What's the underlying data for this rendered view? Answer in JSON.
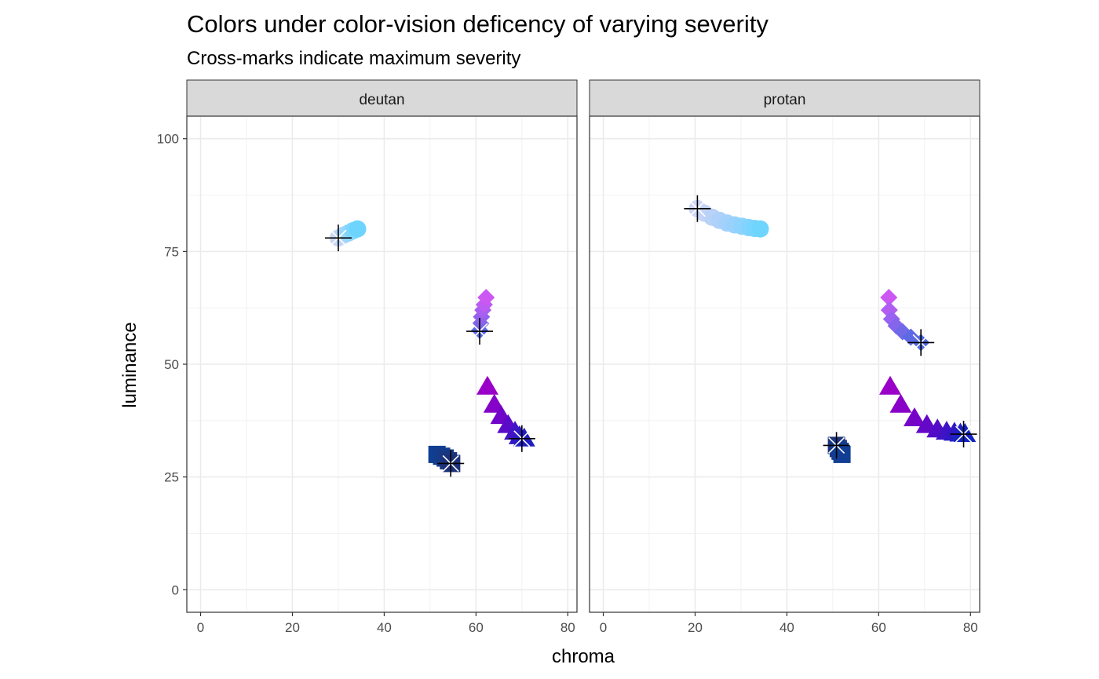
{
  "chart_data": {
    "type": "scatter",
    "title": "Colors under color-vision deficency of varying severity",
    "subtitle": "Cross-marks indicate maximum severity",
    "xlabel": "chroma",
    "ylabel": "luminance",
    "xlim": [
      -3,
      82
    ],
    "ylim": [
      -5,
      105
    ],
    "xticks": [
      0,
      20,
      40,
      60,
      80
    ],
    "yticks": [
      0,
      25,
      50,
      75,
      100
    ],
    "grid": true,
    "facets": [
      {
        "label": "deutan",
        "series": [
          {
            "shape": "circle",
            "colors": [
              "#c9d6f6",
              "#b0d4fa",
              "#96d7fd",
              "#7dd6ff",
              "#6dd5fd"
            ],
            "x": [
              30.0,
              31.1,
              32.2,
              33.2,
              34.2
            ],
            "y": [
              78.0,
              78.6,
              79.1,
              79.6,
              80.0
            ],
            "max_severity": {
              "x": 30.0,
              "y": 78.0
            }
          },
          {
            "shape": "diamond",
            "colors": [
              "#5a6ae0",
              "#7a67e6",
              "#9461ec",
              "#a95ff0",
              "#bc5cf2",
              "#cc57f2"
            ],
            "x": [
              60.8,
              61.0,
              61.2,
              61.5,
              61.8,
              62.2
            ],
            "y": [
              57.5,
              59.0,
              60.5,
              62.0,
              63.2,
              64.8
            ],
            "max_severity": {
              "x": 60.8,
              "y": 57.3
            }
          },
          {
            "shape": "triangle",
            "colors": [
              "#9a00c8",
              "#8502c8",
              "#7004c8",
              "#5a0ac8",
              "#4412c6",
              "#3018c4",
              "#1f1ec0"
            ],
            "x": [
              62.5,
              64.0,
              65.5,
              67.0,
              68.5,
              69.5,
              70.5
            ],
            "y": [
              45.0,
              41.0,
              38.5,
              36.5,
              35.0,
              34.0,
              33.5
            ],
            "max_severity": {
              "x": 70.0,
              "y": 33.5
            }
          },
          {
            "shape": "square",
            "colors": [
              "#0e3f94",
              "#123d8e",
              "#163a88",
              "#193680",
              "#1c3278"
            ],
            "x": [
              51.5,
              52.5,
              53.3,
              54.0,
              54.7
            ],
            "y": [
              30.0,
              29.6,
              29.2,
              28.6,
              28.0
            ],
            "max_severity": {
              "x": 54.5,
              "y": 28.0
            }
          }
        ]
      },
      {
        "label": "protan",
        "series": [
          {
            "shape": "circle",
            "colors": [
              "#cfd6f4",
              "#c4d4f6",
              "#b9d2f8",
              "#aed1fa",
              "#a3d1fb",
              "#98d2fc",
              "#8dd3fd",
              "#82d4fe",
              "#78d5fe",
              "#6fd5fd"
            ],
            "x": [
              20.5,
              22.0,
              23.7,
              25.3,
              27.0,
              28.6,
              30.2,
              31.7,
              33.0,
              34.2
            ],
            "y": [
              84.5,
              83.5,
              82.6,
              81.9,
              81.3,
              80.9,
              80.6,
              80.3,
              80.1,
              80.0
            ],
            "max_severity": {
              "x": 20.5,
              "y": 84.5
            }
          },
          {
            "shape": "diamond",
            "colors": [
              "#cc57f2",
              "#b15df2",
              "#9a62f0",
              "#8466ec",
              "#7069e8",
              "#5e6ae4",
              "#506ae0"
            ],
            "x": [
              62.2,
              62.3,
              62.8,
              63.8,
              65.2,
              67.0,
              69.2
            ],
            "y": [
              64.8,
              62.0,
              60.0,
              58.5,
              57.2,
              56.0,
              54.8
            ],
            "max_severity": {
              "x": 69.2,
              "y": 54.8
            }
          },
          {
            "shape": "triangle",
            "colors": [
              "#9a00c8",
              "#8802c8",
              "#7604c8",
              "#6408c8",
              "#520cc8",
              "#4012c6",
              "#2e18c4",
              "#1e20c2",
              "#1424c0"
            ],
            "x": [
              62.5,
              64.8,
              67.8,
              70.5,
              72.8,
              74.8,
              76.5,
              77.8,
              78.8
            ],
            "y": [
              45.0,
              41.0,
              38.0,
              36.5,
              35.5,
              35.0,
              34.8,
              34.6,
              34.5
            ],
            "max_severity": {
              "x": 78.5,
              "y": 34.5
            }
          },
          {
            "shape": "square",
            "colors": [
              "#1c3278",
              "#183888",
              "#143c90",
              "#113e94"
            ],
            "x": [
              50.8,
              51.2,
              51.6,
              52.0
            ],
            "y": [
              32.0,
              31.3,
              30.7,
              30.0
            ],
            "max_severity": {
              "x": 50.8,
              "y": 32.0
            }
          }
        ]
      }
    ]
  }
}
